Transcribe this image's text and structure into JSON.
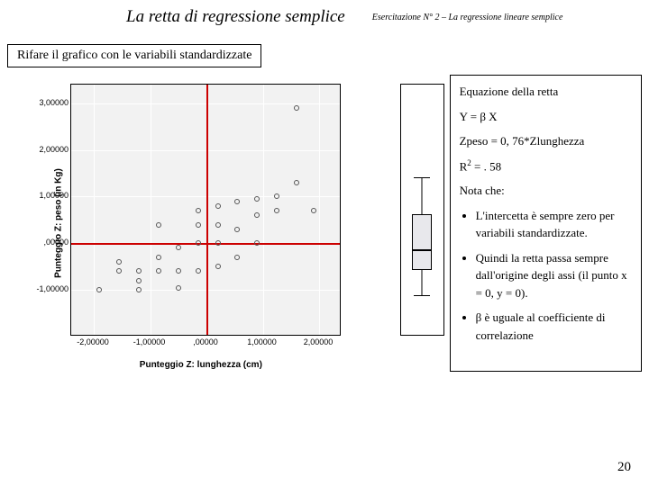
{
  "header": {
    "title": "La retta di regressione semplice",
    "subtitle": "Esercitazione N° 2 – La regressione lineare semplice"
  },
  "instruction": "Rifare il grafico con le variabili standardizzate",
  "chart": {
    "type": "scatter",
    "x_label": "Punteggio Z: lunghezza (cm)",
    "y_label": "Punteggio Z: peso (in Kg)",
    "background_color": "#f2f2f2",
    "grid_color": "#ffffff",
    "border_color": "#000000",
    "marker_color": "#555555",
    "crosshair_color": "#cc0000",
    "crosshair_x": 0,
    "crosshair_y": 0,
    "xlim": [
      -2.4,
      2.4
    ],
    "ylim": [
      -2.0,
      3.4
    ],
    "x_ticks": [
      -2.0,
      -1.0,
      0.0,
      1.0,
      2.0
    ],
    "x_tick_labels": [
      "-2,00000",
      "-1,00000",
      ",00000",
      "1,00000",
      "2,00000"
    ],
    "y_ticks": [
      -1.0,
      0.0,
      1.0,
      2.0,
      3.0
    ],
    "y_tick_labels": [
      "-1,00000",
      ",00000",
      "1,00000",
      "2,00000",
      "3,00000"
    ],
    "points": [
      [
        -1.9,
        -1.0
      ],
      [
        -1.55,
        -0.6
      ],
      [
        -1.55,
        -0.4
      ],
      [
        -1.2,
        -1.0
      ],
      [
        -1.2,
        -0.8
      ],
      [
        -1.2,
        -0.6
      ],
      [
        -0.85,
        -0.6
      ],
      [
        -0.85,
        -0.3
      ],
      [
        -0.85,
        0.4
      ],
      [
        -0.5,
        -0.95
      ],
      [
        -0.5,
        -0.6
      ],
      [
        -0.5,
        -0.1
      ],
      [
        -0.15,
        -0.6
      ],
      [
        -0.15,
        0.0
      ],
      [
        -0.15,
        0.4
      ],
      [
        -0.15,
        0.7
      ],
      [
        0.2,
        -0.5
      ],
      [
        0.2,
        0.0
      ],
      [
        0.2,
        0.4
      ],
      [
        0.2,
        0.8
      ],
      [
        0.55,
        -0.3
      ],
      [
        0.55,
        0.3
      ],
      [
        0.55,
        0.9
      ],
      [
        0.9,
        0.0
      ],
      [
        0.9,
        0.6
      ],
      [
        0.9,
        0.95
      ],
      [
        1.25,
        0.7
      ],
      [
        1.25,
        1.0
      ],
      [
        1.6,
        1.3
      ],
      [
        1.6,
        2.9
      ],
      [
        1.9,
        0.7
      ]
    ]
  },
  "boxplot": {
    "min": -1.15,
    "q1": -0.6,
    "median": -0.15,
    "q3": 0.6,
    "max": 1.4,
    "ylim": [
      -2.0,
      3.4
    ],
    "box_fill": "#e8e8ec"
  },
  "info": {
    "heading": "Equazione della retta",
    "equation": "Y = β X",
    "regression": "Zpeso = 0, 76*Zlunghezza",
    "r2_label": "R",
    "r2_value": " = . 58",
    "note_heading": "Nota che:",
    "bullets": [
      "L'intercetta è sempre zero per variabili standardizzate.",
      "Quindi la retta passa sempre dall'origine degli assi (il punto x = 0, y = 0).",
      "β è uguale al coefficiente di correlazione"
    ]
  },
  "page_number": "20"
}
